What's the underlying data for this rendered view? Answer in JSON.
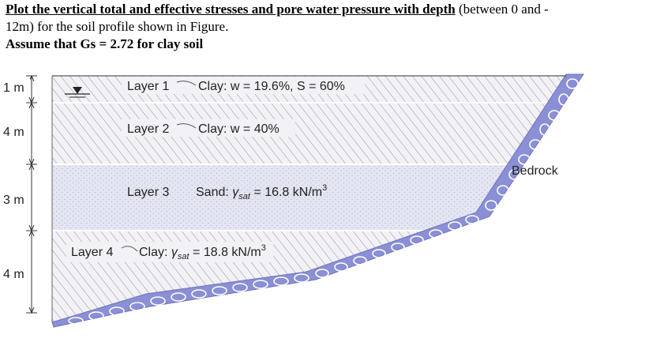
{
  "problem": {
    "line1_bold": "Plot the vertical total and effective stresses and pore water pressure with depth",
    "line1_rest": " (between 0 and -",
    "line2": "12m) for the soil profile shown in Figure.",
    "line3": "Assume that Gs = 2.72 for clay soil"
  },
  "figure": {
    "dimensions": [
      "1 m",
      "4 m",
      "3 m",
      "4 m"
    ],
    "layers": [
      {
        "name": "Layer 1",
        "desc": "Clay: w = 19.6%, S = 60%"
      },
      {
        "name": "Layer 2",
        "desc": "Clay: w = 40%"
      },
      {
        "name": "Layer 3",
        "desc_prefix": "Sand: ",
        "gamma": "γ",
        "sub": "sat",
        "desc_suffix": " = 16.8 kN/m",
        "sup": "3"
      },
      {
        "name": "Layer 4",
        "desc_prefix": "Clay: ",
        "gamma": "γ",
        "sub": "sat",
        "desc_suffix": " = 18.8 kN/m",
        "sup": "3"
      }
    ],
    "bedrock_label": "Bedrock",
    "colors": {
      "clay_bg": "#f2f2f6",
      "clay_hatch": "#8d8d98",
      "sand_bg": "#e4e5f2",
      "bedrock_fill": "#8a8fd6",
      "bedrock_stroke": "#ffffff"
    }
  }
}
